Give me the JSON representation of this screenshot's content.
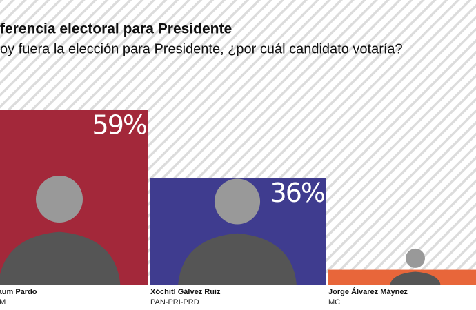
{
  "chart_data": {
    "type": "bar",
    "title": "ferencia electoral para Presidente",
    "subtitle": "oy fuera la elección para Presidente, ¿por cuál candidato votaría?",
    "categories": [
      "Sheinbaum Pardo",
      "Xóchitl Gálvez Ruiz",
      "Jorge Álvarez Máynez"
    ],
    "parties": [
      "PT-PVEM",
      "PAN-PRI-PRD",
      "MC"
    ],
    "values": [
      59,
      36,
      5
    ],
    "value_labels": [
      "59%",
      "36%",
      null
    ],
    "colors": [
      "#a3283a",
      "#3f3c8f",
      "#e8663a"
    ]
  }
}
